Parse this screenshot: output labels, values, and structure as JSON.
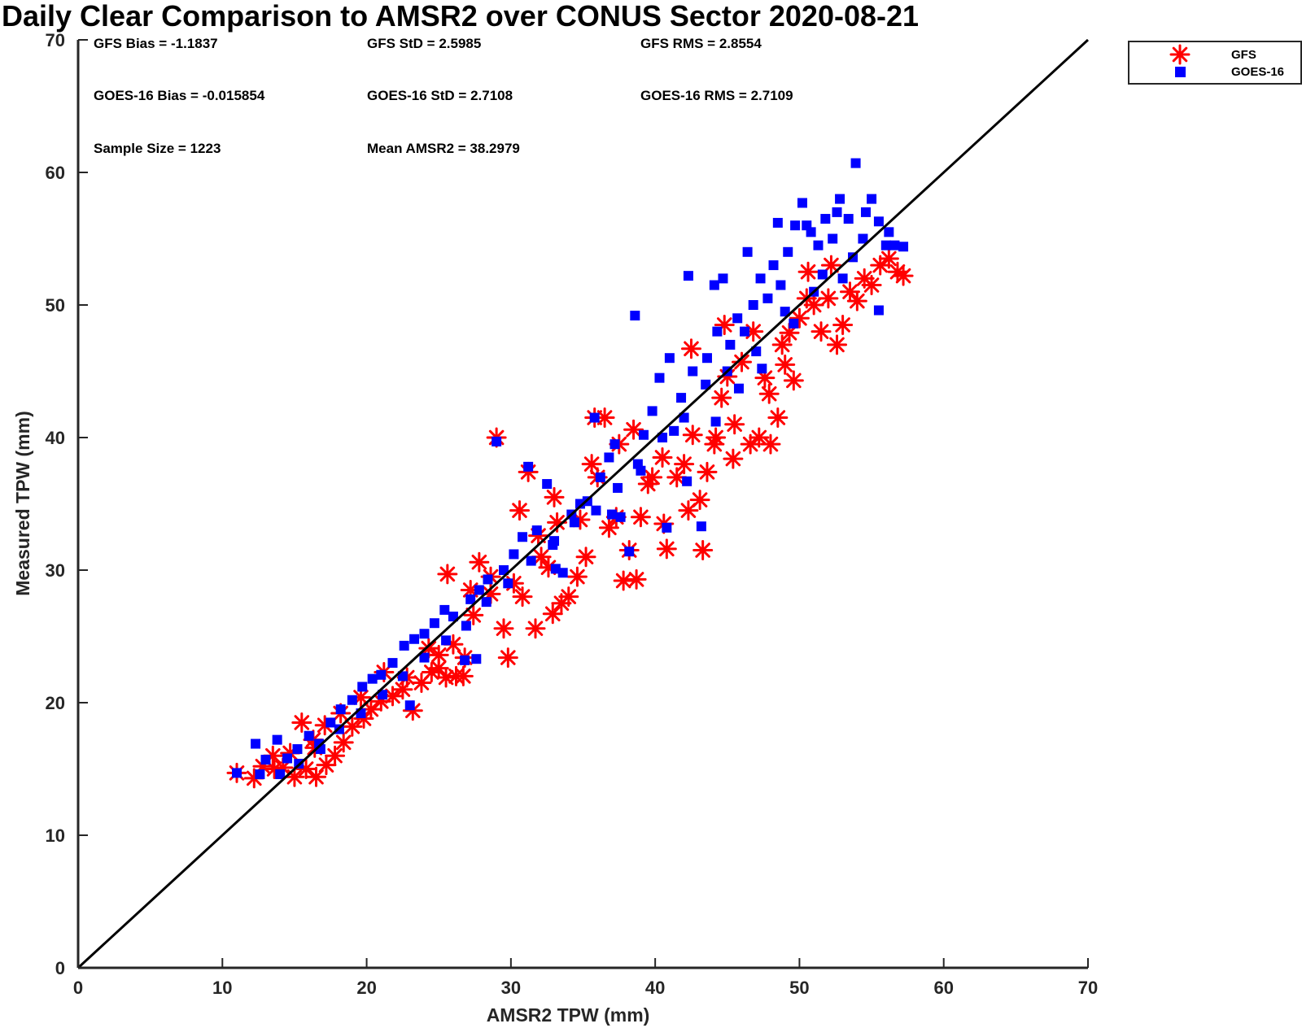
{
  "chart_data": {
    "type": "scatter",
    "title": "Daily Clear Comparison to AMSR2 over CONUS Sector 2020-08-21",
    "xlabel": "AMSR2 TPW (mm)",
    "ylabel": "Measured TPW (mm)",
    "xlim": [
      0,
      70
    ],
    "ylim": [
      0,
      70
    ],
    "x_ticks": [
      "0",
      "10",
      "20",
      "30",
      "40",
      "50",
      "60",
      "70"
    ],
    "y_ticks": [
      "0",
      "10",
      "20",
      "30",
      "40",
      "50",
      "60",
      "70"
    ],
    "grid": false,
    "legend": {
      "position": "outside-top-right",
      "entries": [
        "GFS",
        "GOES-16"
      ]
    },
    "reference_line": {
      "from": [
        0,
        0
      ],
      "to": [
        70,
        70
      ],
      "color": "#000000"
    },
    "annotations": [
      "GFS Bias = -1.1837",
      "GFS StD = 2.5985",
      "GFS RMS = 2.8554",
      "GOES-16 Bias = -0.015854",
      "GOES-16 StD = 2.7108",
      "GOES-16 RMS = 2.7109",
      "Sample Size = 1223",
      "Mean AMSR2 = 38.2979"
    ],
    "series": [
      {
        "name": "GFS",
        "marker": "asterisk",
        "color": "#ff0000",
        "points": [
          [
            11.0,
            14.7
          ],
          [
            12.2,
            14.3
          ],
          [
            12.8,
            15.2
          ],
          [
            13.5,
            16.0
          ],
          [
            14.2,
            15.1
          ],
          [
            15.0,
            14.4
          ],
          [
            15.8,
            15.0
          ],
          [
            16.5,
            14.4
          ],
          [
            17.2,
            15.3
          ],
          [
            17.8,
            16.0
          ],
          [
            15.5,
            18.5
          ],
          [
            16.3,
            17.2
          ],
          [
            18.4,
            17.0
          ],
          [
            19.0,
            18.2
          ],
          [
            19.8,
            18.8
          ],
          [
            20.3,
            19.5
          ],
          [
            21.0,
            20.1
          ],
          [
            21.8,
            20.5
          ],
          [
            22.5,
            21.0
          ],
          [
            23.2,
            19.4
          ],
          [
            23.8,
            21.5
          ],
          [
            24.5,
            22.3
          ],
          [
            25.0,
            22.6
          ],
          [
            25.5,
            21.9
          ],
          [
            26.2,
            22.0
          ],
          [
            26.8,
            23.4
          ],
          [
            25.6,
            29.7
          ],
          [
            27.2,
            28.5
          ],
          [
            27.8,
            30.6
          ],
          [
            28.6,
            29.5
          ],
          [
            29.0,
            40.0
          ],
          [
            29.5,
            25.6
          ],
          [
            29.8,
            23.4
          ],
          [
            30.2,
            29.0
          ],
          [
            30.6,
            34.5
          ],
          [
            31.2,
            37.4
          ],
          [
            31.7,
            25.6
          ],
          [
            32.1,
            31.0
          ],
          [
            32.6,
            30.2
          ],
          [
            33.0,
            35.5
          ],
          [
            33.5,
            27.5
          ],
          [
            34.0,
            28.0
          ],
          [
            34.6,
            29.5
          ],
          [
            35.2,
            31.0
          ],
          [
            35.6,
            38.0
          ],
          [
            35.8,
            41.5
          ],
          [
            36.5,
            41.5
          ],
          [
            36.8,
            33.2
          ],
          [
            37.3,
            34.0
          ],
          [
            37.8,
            29.2
          ],
          [
            38.2,
            31.5
          ],
          [
            38.7,
            29.3
          ],
          [
            39.0,
            34.0
          ],
          [
            39.5,
            36.5
          ],
          [
            39.8,
            37.0
          ],
          [
            40.5,
            38.5
          ],
          [
            40.6,
            33.5
          ],
          [
            40.8,
            31.6
          ],
          [
            41.5,
            37.0
          ],
          [
            42.0,
            38.0
          ],
          [
            42.3,
            34.5
          ],
          [
            42.5,
            46.7
          ],
          [
            43.1,
            35.3
          ],
          [
            43.3,
            31.5
          ],
          [
            43.6,
            37.4
          ],
          [
            44.2,
            40.0
          ],
          [
            44.6,
            43.0
          ],
          [
            45.0,
            44.6
          ],
          [
            45.5,
            41.0
          ],
          [
            46.0,
            45.7
          ],
          [
            46.6,
            39.5
          ],
          [
            47.2,
            40.0
          ],
          [
            47.6,
            44.5
          ],
          [
            48.0,
            39.5
          ],
          [
            48.5,
            41.5
          ],
          [
            49.0,
            45.5
          ],
          [
            49.6,
            44.3
          ],
          [
            50.0,
            49.0
          ],
          [
            50.5,
            50.5
          ],
          [
            51.0,
            50.0
          ],
          [
            51.5,
            48.0
          ],
          [
            52.0,
            50.5
          ],
          [
            52.6,
            47.0
          ],
          [
            53.0,
            48.5
          ],
          [
            53.5,
            51.0
          ],
          [
            54.0,
            50.3
          ],
          [
            54.5,
            52.0
          ],
          [
            55.0,
            51.5
          ],
          [
            55.6,
            53.0
          ],
          [
            56.2,
            53.5
          ],
          [
            56.8,
            52.5
          ],
          [
            57.2,
            52.2
          ],
          [
            44.8,
            48.5
          ],
          [
            46.8,
            48.0
          ],
          [
            48.8,
            47.0
          ],
          [
            50.6,
            52.5
          ],
          [
            52.2,
            53.0
          ],
          [
            38.5,
            40.6
          ],
          [
            37.5,
            39.5
          ],
          [
            34.8,
            33.8
          ],
          [
            33.2,
            33.6
          ],
          [
            31.9,
            32.6
          ],
          [
            28.6,
            28.2
          ],
          [
            27.4,
            26.6
          ],
          [
            26.0,
            24.4
          ],
          [
            24.3,
            24.1
          ],
          [
            22.8,
            21.9
          ],
          [
            21.2,
            22.3
          ],
          [
            19.6,
            20.4
          ],
          [
            18.2,
            19.2
          ],
          [
            17.1,
            18.3
          ],
          [
            16.4,
            16.6
          ],
          [
            14.7,
            16.2
          ],
          [
            13.6,
            15.0
          ],
          [
            42.6,
            40.2
          ],
          [
            44.1,
            39.5
          ],
          [
            45.4,
            38.4
          ],
          [
            47.9,
            43.3
          ],
          [
            49.3,
            47.9
          ],
          [
            30.8,
            28.0
          ],
          [
            32.9,
            26.7
          ],
          [
            36.0,
            37.0
          ],
          [
            26.7,
            22.0
          ],
          [
            25.0,
            23.6
          ]
        ]
      },
      {
        "name": "GOES-16",
        "marker": "square",
        "color": "#0000ff",
        "points": [
          [
            11.0,
            14.7
          ],
          [
            12.3,
            16.9
          ],
          [
            13.0,
            15.7
          ],
          [
            13.8,
            17.2
          ],
          [
            14.5,
            15.8
          ],
          [
            15.2,
            16.5
          ],
          [
            16.0,
            17.5
          ],
          [
            16.8,
            16.5
          ],
          [
            17.5,
            18.5
          ],
          [
            18.2,
            19.5
          ],
          [
            19.0,
            20.2
          ],
          [
            19.7,
            21.2
          ],
          [
            20.4,
            21.8
          ],
          [
            21.0,
            22.1
          ],
          [
            21.8,
            23.0
          ],
          [
            22.6,
            24.3
          ],
          [
            23.3,
            24.8
          ],
          [
            23.0,
            19.8
          ],
          [
            24.0,
            25.2
          ],
          [
            24.7,
            26.0
          ],
          [
            25.4,
            27.0
          ],
          [
            26.0,
            26.5
          ],
          [
            26.8,
            23.2
          ],
          [
            27.2,
            27.8
          ],
          [
            27.8,
            28.5
          ],
          [
            28.4,
            29.3
          ],
          [
            29.0,
            39.7
          ],
          [
            29.5,
            30.0
          ],
          [
            30.2,
            31.2
          ],
          [
            30.8,
            32.5
          ],
          [
            31.2,
            37.8
          ],
          [
            31.8,
            33.0
          ],
          [
            32.5,
            36.5
          ],
          [
            33.0,
            32.2
          ],
          [
            33.6,
            29.8
          ],
          [
            34.2,
            34.2
          ],
          [
            34.8,
            35.0
          ],
          [
            35.3,
            35.2
          ],
          [
            35.8,
            41.5
          ],
          [
            36.2,
            37.0
          ],
          [
            36.8,
            38.5
          ],
          [
            37.2,
            39.5
          ],
          [
            37.6,
            34.0
          ],
          [
            38.2,
            31.4
          ],
          [
            38.8,
            38.0
          ],
          [
            39.2,
            40.2
          ],
          [
            39.8,
            42.0
          ],
          [
            40.3,
            44.5
          ],
          [
            40.8,
            33.2
          ],
          [
            41.3,
            40.5
          ],
          [
            41.8,
            43.0
          ],
          [
            42.2,
            36.7
          ],
          [
            42.6,
            45.0
          ],
          [
            43.2,
            33.3
          ],
          [
            43.6,
            46.0
          ],
          [
            44.1,
            51.5
          ],
          [
            44.7,
            52.0
          ],
          [
            45.2,
            47.0
          ],
          [
            45.7,
            49.0
          ],
          [
            46.2,
            48.0
          ],
          [
            46.8,
            50.0
          ],
          [
            47.3,
            52.0
          ],
          [
            47.8,
            50.5
          ],
          [
            48.2,
            53.0
          ],
          [
            48.7,
            51.5
          ],
          [
            49.2,
            54.0
          ],
          [
            49.7,
            56.0
          ],
          [
            50.2,
            57.7
          ],
          [
            50.8,
            55.5
          ],
          [
            51.3,
            54.5
          ],
          [
            51.8,
            56.5
          ],
          [
            52.3,
            55.0
          ],
          [
            52.8,
            58.0
          ],
          [
            53.4,
            56.5
          ],
          [
            53.9,
            60.7
          ],
          [
            54.4,
            55.0
          ],
          [
            55.0,
            58.0
          ],
          [
            55.5,
            56.3
          ],
          [
            56.0,
            54.5
          ],
          [
            56.6,
            54.5
          ],
          [
            57.2,
            54.4
          ],
          [
            38.6,
            49.2
          ],
          [
            41.0,
            46.0
          ],
          [
            42.3,
            52.2
          ],
          [
            44.3,
            48.0
          ],
          [
            46.4,
            54.0
          ],
          [
            48.5,
            56.2
          ],
          [
            50.5,
            56.0
          ],
          [
            52.6,
            57.0
          ],
          [
            54.6,
            57.0
          ],
          [
            56.2,
            55.5
          ],
          [
            55.5,
            49.6
          ],
          [
            53.0,
            52.0
          ],
          [
            51.0,
            51.0
          ],
          [
            49.0,
            49.5
          ],
          [
            47.0,
            46.5
          ],
          [
            45.0,
            45.0
          ],
          [
            43.5,
            44.0
          ],
          [
            42.0,
            41.5
          ],
          [
            40.5,
            40.0
          ],
          [
            39.0,
            37.5
          ],
          [
            37.4,
            36.2
          ],
          [
            35.9,
            34.5
          ],
          [
            34.4,
            33.6
          ],
          [
            32.9,
            31.9
          ],
          [
            31.4,
            30.7
          ],
          [
            29.8,
            29.0
          ],
          [
            28.3,
            27.6
          ],
          [
            26.9,
            25.8
          ],
          [
            25.5,
            24.7
          ],
          [
            24.0,
            23.4
          ],
          [
            22.5,
            22.0
          ],
          [
            21.1,
            20.6
          ],
          [
            19.6,
            19.2
          ],
          [
            18.1,
            18.0
          ],
          [
            16.7,
            16.9
          ],
          [
            15.3,
            15.4
          ],
          [
            14.0,
            14.6
          ],
          [
            12.6,
            14.6
          ],
          [
            44.2,
            41.2
          ],
          [
            45.8,
            43.7
          ],
          [
            47.4,
            45.2
          ],
          [
            49.6,
            48.6
          ],
          [
            51.6,
            52.3
          ],
          [
            53.7,
            53.6
          ],
          [
            37.0,
            34.2
          ],
          [
            33.1,
            30.1
          ],
          [
            27.6,
            23.3
          ]
        ]
      }
    ]
  }
}
